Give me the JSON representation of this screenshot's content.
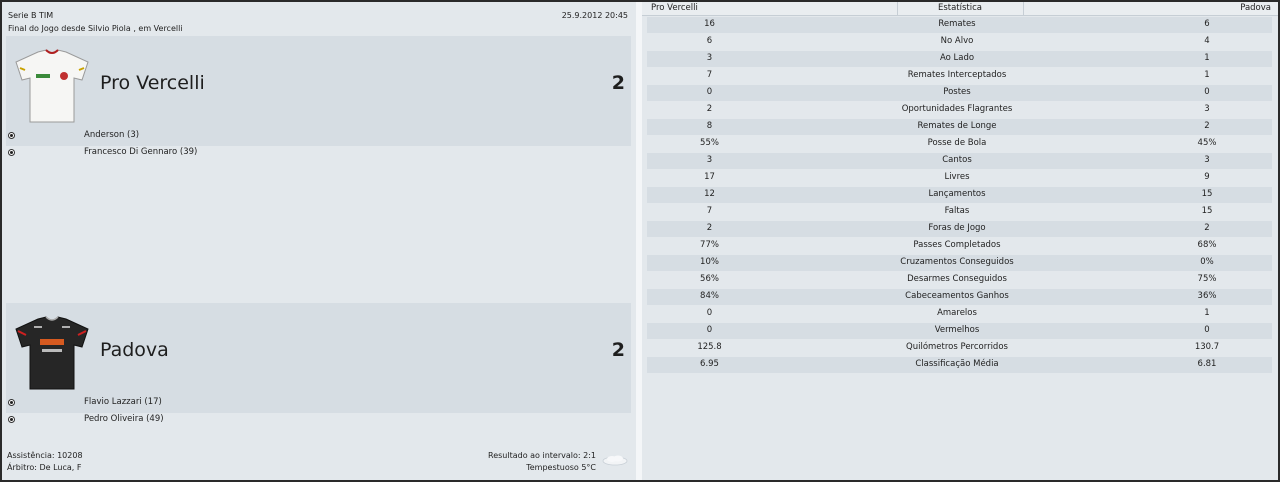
{
  "match": {
    "competition": "Serie B TIM",
    "datetime": "25.9.2012 20:45",
    "venue_line": "Final do Jogo desde Silvio Piola , em Vercelli"
  },
  "home": {
    "name": "Pro Vercelli",
    "score": "2",
    "scorers": [
      "Anderson (3)",
      "Francesco Di Gennaro (39)"
    ]
  },
  "away": {
    "name": "Padova",
    "score": "2",
    "scorers": [
      "Flavio Lazzari (17)",
      "Pedro Oliveira (49)"
    ]
  },
  "footer": {
    "attendance": "Assistência: 10208",
    "referee": "Árbitro: De Luca, F",
    "halftime": "Resultado ao intervalo: 2:1",
    "weather": "Tempestuoso 5°C"
  },
  "stats": {
    "header": {
      "home": "Pro Vercelli",
      "label": "Estatística",
      "away": "Padova"
    },
    "rows": [
      {
        "label": "Remates",
        "home": "16",
        "away": "6"
      },
      {
        "label": "No Alvo",
        "home": "6",
        "away": "4"
      },
      {
        "label": "Ao Lado",
        "home": "3",
        "away": "1"
      },
      {
        "label": "Remates Interceptados",
        "home": "7",
        "away": "1"
      },
      {
        "label": "Postes",
        "home": "0",
        "away": "0"
      },
      {
        "label": "Oportunidades Flagrantes",
        "home": "2",
        "away": "3"
      },
      {
        "label": "Remates de Longe",
        "home": "8",
        "away": "2"
      },
      {
        "label": "Posse de Bola",
        "home": "55%",
        "away": "45%"
      },
      {
        "label": "Cantos",
        "home": "3",
        "away": "3"
      },
      {
        "label": "Livres",
        "home": "17",
        "away": "9"
      },
      {
        "label": "Lançamentos",
        "home": "12",
        "away": "15"
      },
      {
        "label": "Faltas",
        "home": "7",
        "away": "15"
      },
      {
        "label": "Foras de Jogo",
        "home": "2",
        "away": "2"
      },
      {
        "label": "Passes Completados",
        "home": "77%",
        "away": "68%"
      },
      {
        "label": "Cruzamentos Conseguidos",
        "home": "10%",
        "away": "0%"
      },
      {
        "label": "Desarmes Conseguidos",
        "home": "56%",
        "away": "75%"
      },
      {
        "label": "Cabeceamentos Ganhos",
        "home": "84%",
        "away": "36%"
      },
      {
        "label": "Amarelos",
        "home": "0",
        "away": "1"
      },
      {
        "label": "Vermelhos",
        "home": "0",
        "away": "0"
      },
      {
        "label": "Quilómetros Percorridos",
        "home": "125.8",
        "away": "130.7"
      },
      {
        "label": "Classificação Média",
        "home": "6.95",
        "away": "6.81"
      }
    ]
  },
  "icons": {
    "home_kit": "white-shirt-icon",
    "away_kit": "black-shirt-icon",
    "goal": "football-icon",
    "weather": "cloud-icon"
  }
}
